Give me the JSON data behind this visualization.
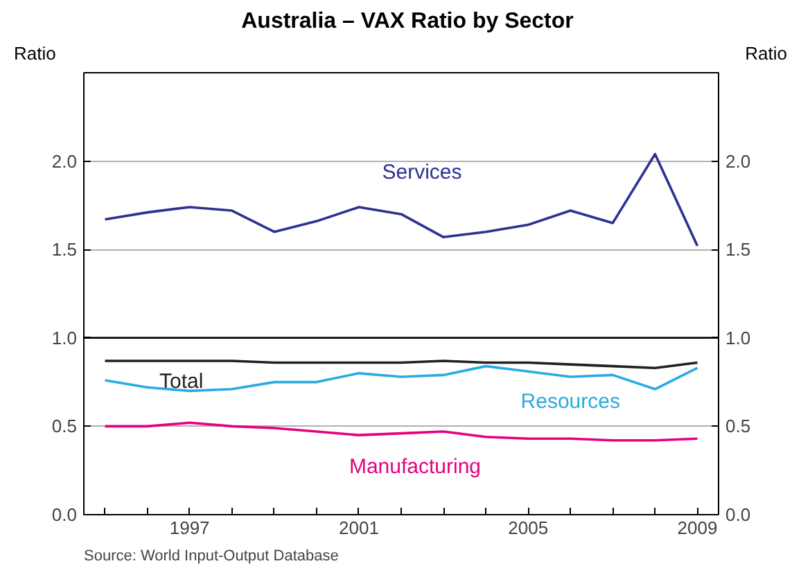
{
  "chart_data": {
    "type": "line",
    "title": "Australia – VAX Ratio by Sector",
    "x": [
      1995,
      1996,
      1997,
      1998,
      1999,
      2000,
      2001,
      2002,
      2003,
      2004,
      2005,
      2006,
      2007,
      2008,
      2009
    ],
    "series": [
      {
        "name": "Services",
        "color": "#2e3192",
        "values": [
          1.67,
          1.71,
          1.74,
          1.72,
          1.6,
          1.66,
          1.74,
          1.7,
          1.57,
          1.6,
          1.64,
          1.72,
          1.65,
          2.04,
          1.52
        ]
      },
      {
        "name": "Total",
        "color": "#231f20",
        "values": [
          0.87,
          0.87,
          0.87,
          0.87,
          0.86,
          0.86,
          0.86,
          0.86,
          0.87,
          0.86,
          0.86,
          0.85,
          0.84,
          0.83,
          0.86
        ]
      },
      {
        "name": "Resources",
        "color": "#29abe2",
        "values": [
          0.76,
          0.72,
          0.7,
          0.71,
          0.75,
          0.75,
          0.8,
          0.78,
          0.79,
          0.84,
          0.81,
          0.78,
          0.79,
          0.71,
          0.83
        ]
      },
      {
        "name": "Manufacturing",
        "color": "#e6007e",
        "values": [
          0.5,
          0.5,
          0.52,
          0.5,
          0.49,
          0.47,
          0.45,
          0.46,
          0.47,
          0.44,
          0.43,
          0.43,
          0.42,
          0.42,
          0.43
        ]
      }
    ],
    "xlim": [
      1994.5,
      2009.5
    ],
    "xticks": [
      {
        "value": 1995,
        "label": null
      },
      {
        "value": 1996,
        "label": null
      },
      1997,
      {
        "value": 1998,
        "label": null
      },
      {
        "value": 1999,
        "label": null
      },
      {
        "value": 2000,
        "label": null
      },
      2001,
      {
        "value": 2002,
        "label": null
      },
      {
        "value": 2003,
        "label": null
      },
      {
        "value": 2004,
        "label": null
      },
      2005,
      {
        "value": 2006,
        "label": null
      },
      {
        "value": 2007,
        "label": null
      },
      {
        "value": 2008,
        "label": null
      },
      2009
    ],
    "ylim": [
      0,
      2.5
    ],
    "yticks": [
      {
        "value": 0,
        "label": "0.0"
      },
      0.5,
      {
        "value": 1,
        "label": "1.0"
      },
      1.5,
      {
        "value": 2,
        "label": "2.0"
      },
      {
        "value": 2.5,
        "label": null
      }
    ],
    "y2lim": [
      0,
      2.5
    ],
    "y2ticks": [
      {
        "value": 0,
        "label": "0.0"
      },
      0.5,
      {
        "value": 1,
        "label": "1.0"
      },
      1.5,
      {
        "value": 2,
        "label": "2.0"
      },
      {
        "value": 2.5,
        "label": null
      }
    ],
    "ylabel": "Ratio",
    "y2label": "Ratio",
    "ref_lines": [
      {
        "axis": "y",
        "value": 1,
        "color": "#000000"
      }
    ],
    "grid": "y",
    "legend": false,
    "marker": "none",
    "line_style": "solid",
    "annotations": [
      "Source: World Input-Output Database"
    ]
  }
}
